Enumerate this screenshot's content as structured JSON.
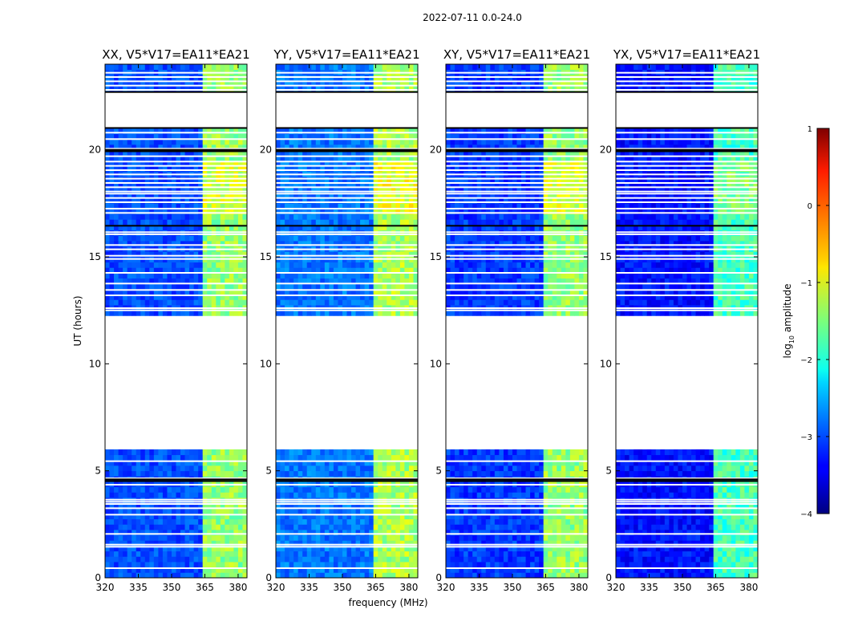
{
  "figure": {
    "suptitle": "2022-07-11 0.0-24.0",
    "xlabel": "frequency (MHz)",
    "ylabel": "UT (hours)",
    "colorbar_label": "log",
    "colorbar_label_sub": "10",
    "colorbar_label_rest": " amplitude"
  },
  "chart_data": {
    "type": "heatmap",
    "x_ticks": [
      320,
      335,
      350,
      365,
      380
    ],
    "x_tick_labels": [
      "320",
      "335",
      "350",
      "365",
      "380"
    ],
    "xlim": [
      320,
      384
    ],
    "y_ticks": [
      0,
      5,
      10,
      15,
      20
    ],
    "y_tick_labels": [
      "0",
      "5",
      "10",
      "15",
      "20"
    ],
    "ylim": [
      0,
      24
    ],
    "colorbar": {
      "ticks": [
        1,
        0,
        -1,
        -2,
        -3,
        -4
      ],
      "tick_labels": [
        "1",
        "0",
        "−1",
        "−2",
        "−3",
        "−4"
      ],
      "range": [
        -4,
        1
      ],
      "colormap": "jet"
    },
    "panels": [
      {
        "title": "XX, V5*V17=EA11*EA21",
        "base_level": -3.0,
        "rfi_level": -1.4
      },
      {
        "title": "YY, V5*V17=EA11*EA21",
        "base_level": -2.8,
        "rfi_level": -1.3
      },
      {
        "title": "XY, V5*V17=EA11*EA21",
        "base_level": -3.1,
        "rfi_level": -1.4
      },
      {
        "title": "YX, V5*V17=EA11*EA21",
        "base_level": -3.3,
        "rfi_level": -1.8
      }
    ],
    "data_gaps_hours": [
      [
        6.0,
        12.2
      ],
      [
        16.4,
        16.6
      ],
      [
        21.0,
        21.5
      ],
      [
        21.6,
        22.7
      ]
    ],
    "rfi_channels_mhz": [
      [
        363.5,
        367.5
      ],
      [
        369,
        373
      ],
      [
        374.5,
        378
      ],
      [
        379,
        383
      ]
    ]
  }
}
